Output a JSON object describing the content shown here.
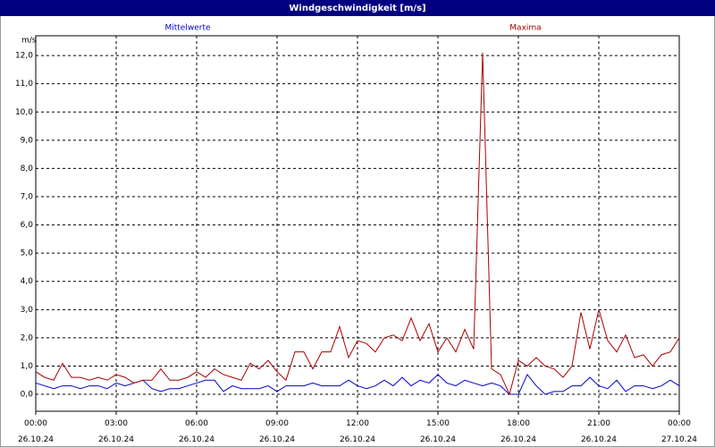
{
  "chart_data": {
    "type": "line",
    "title": "Windgeschwindigkeit [m/s]",
    "y_unit": "m/s",
    "x": [
      0,
      20,
      40,
      60,
      80,
      100,
      120,
      140,
      160,
      180,
      200,
      220,
      240,
      260,
      280,
      300,
      320,
      340,
      360,
      380,
      400,
      420,
      440,
      460,
      480,
      500,
      520,
      540,
      560,
      580,
      600,
      620,
      640,
      660,
      680,
      700,
      720,
      740,
      760,
      780,
      800,
      820,
      840,
      860,
      880,
      900,
      920,
      940,
      960,
      980,
      1000,
      1020,
      1040,
      1060,
      1080,
      1100,
      1120,
      1140,
      1160,
      1180,
      1200,
      1220,
      1240,
      1260,
      1280,
      1300,
      1320,
      1340,
      1360,
      1380,
      1400,
      1420,
      1440
    ],
    "series": [
      {
        "name": "Mittelwerte",
        "color": "#0000cc",
        "values": [
          0.4,
          0.3,
          0.2,
          0.3,
          0.3,
          0.2,
          0.3,
          0.3,
          0.2,
          0.4,
          0.3,
          0.4,
          0.5,
          0.2,
          0.1,
          0.2,
          0.2,
          0.3,
          0.4,
          0.5,
          0.5,
          0.1,
          0.3,
          0.2,
          0.2,
          0.2,
          0.3,
          0.1,
          0.3,
          0.3,
          0.3,
          0.4,
          0.3,
          0.3,
          0.3,
          0.5,
          0.3,
          0.2,
          0.3,
          0.5,
          0.3,
          0.6,
          0.3,
          0.5,
          0.4,
          0.7,
          0.4,
          0.3,
          0.5,
          0.4,
          0.3,
          0.4,
          0.3,
          0.0,
          0.0,
          0.7,
          0.3,
          0.0,
          0.1,
          0.1,
          0.3,
          0.3,
          0.6,
          0.3,
          0.2,
          0.5,
          0.1,
          0.3,
          0.3,
          0.2,
          0.3,
          0.5,
          0.3
        ]
      },
      {
        "name": "Maxima",
        "color": "#aa0000",
        "values": [
          0.8,
          0.6,
          0.5,
          1.1,
          0.6,
          0.6,
          0.5,
          0.6,
          0.5,
          0.7,
          0.6,
          0.4,
          0.5,
          0.5,
          0.9,
          0.5,
          0.5,
          0.6,
          0.8,
          0.6,
          0.9,
          0.7,
          0.6,
          0.5,
          1.1,
          0.9,
          1.2,
          0.8,
          0.5,
          1.5,
          1.5,
          0.9,
          1.5,
          1.5,
          2.4,
          1.3,
          1.9,
          1.8,
          1.5,
          2.0,
          2.1,
          1.9,
          2.7,
          1.9,
          2.5,
          1.5,
          2.0,
          1.5,
          2.3,
          1.6,
          12.1,
          0.9,
          0.7,
          0.0,
          1.2,
          1.0,
          1.3,
          1.0,
          0.9,
          0.6,
          1.0,
          2.9,
          1.6,
          3.0,
          1.9,
          1.5,
          2.1,
          1.3,
          1.4,
          1.0,
          1.4,
          1.5,
          2.0
        ]
      }
    ],
    "xlim": [
      0,
      1440
    ],
    "xticks": [
      {
        "value": 0,
        "label": "00:00\n26.10.24"
      },
      {
        "value": 180,
        "label": "03:00\n26.10.24"
      },
      {
        "value": 360,
        "label": "06:00\n26.10.24"
      },
      {
        "value": 540,
        "label": "09:00\n26.10.24"
      },
      {
        "value": 720,
        "label": "12:00\n26.10.24"
      },
      {
        "value": 900,
        "label": "15:00\n26.10.24"
      },
      {
        "value": 1080,
        "label": "18:00\n26.10.24"
      },
      {
        "value": 1260,
        "label": "21:00\n26.10.24"
      },
      {
        "value": 1440,
        "label": "00:00\n27.10.24"
      }
    ],
    "ylim": [
      -0.6,
      12.7
    ],
    "yticks": [
      {
        "value": 0,
        "label": "0,0"
      },
      {
        "value": 1,
        "label": "1,0"
      },
      {
        "value": 2,
        "label": "2,0"
      },
      {
        "value": 3,
        "label": "3,0"
      },
      {
        "value": 4,
        "label": "4,0"
      },
      {
        "value": 5,
        "label": "5,0"
      },
      {
        "value": 6,
        "label": "6,0"
      },
      {
        "value": 7,
        "label": "7,0"
      },
      {
        "value": 8,
        "label": "8,0"
      },
      {
        "value": 9,
        "label": "9,0"
      },
      {
        "value": 10,
        "label": "10,0"
      },
      {
        "value": 11,
        "label": "11,0"
      },
      {
        "value": 12,
        "label": "12,0"
      }
    ],
    "grid": true
  }
}
